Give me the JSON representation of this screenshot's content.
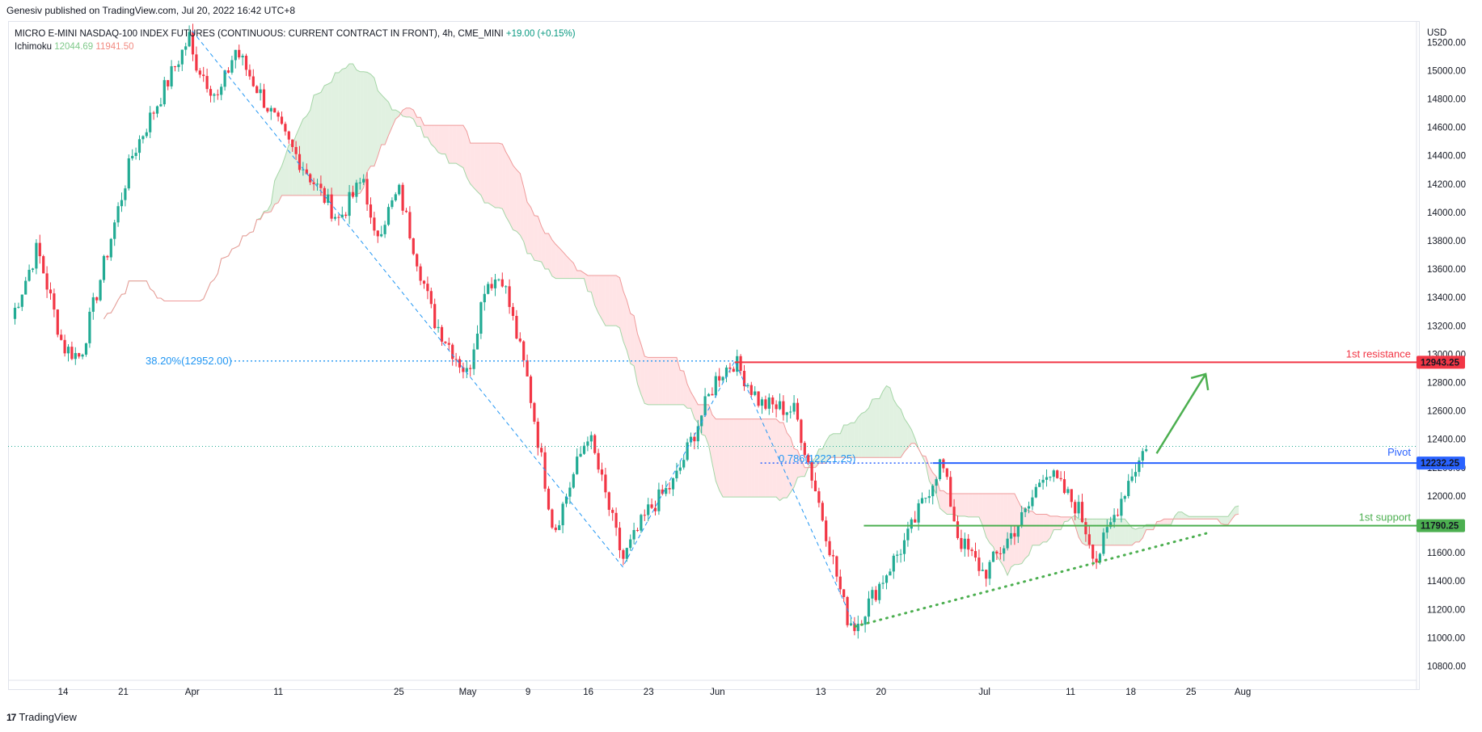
{
  "header": {
    "publisher": "Genesiv published on TradingView.com, Jul 20, 2022 16:42 UTC+8"
  },
  "legend": {
    "symbol": "MICRO E-MINI NASDAQ-100 INDEX FUTURES (CONTINUOUS: CURRENT CONTRACT IN FRONT), 4h, CME_MINI",
    "change": "+19.00 (+0.15%)",
    "indicator": "Ichimoku",
    "ichimoku_a": "12044.69",
    "ichimoku_b": "11941.50"
  },
  "footer": {
    "brand": "TradingView"
  },
  "colors": {
    "up": "#22ab94",
    "down": "#f23645",
    "resistance": "#f23645",
    "pivot": "#2962ff",
    "support": "#4caf50",
    "fib": "#2196f3",
    "cloud_green": "#c8e6c9",
    "cloud_red": "#ffcdd2"
  },
  "chart_data": {
    "type": "candlestick",
    "currency": "USD",
    "ylim": [
      10700,
      15350
    ],
    "y_ticks": [
      "15200.00",
      "15000.00",
      "14800.00",
      "14600.00",
      "14400.00",
      "14200.00",
      "14000.00",
      "13800.00",
      "13600.00",
      "13400.00",
      "13200.00",
      "13000.00",
      "12800.00",
      "12600.00",
      "12400.00",
      "12200.00",
      "12000.00",
      "11800.00",
      "11600.00",
      "11400.00",
      "11200.00",
      "11000.00",
      "10800.00"
    ],
    "x_ticks": [
      "14",
      "21",
      "Apr",
      "11",
      "25",
      "May",
      "9",
      "16",
      "23",
      "Jun",
      "13",
      "20",
      "Jul",
      "11",
      "18",
      "25",
      "Aug"
    ],
    "price_path": [
      {
        "date": "Mar 8",
        "price": 13250
      },
      {
        "date": "Mar 11",
        "price": 13750
      },
      {
        "date": "Mar 14",
        "price": 13050
      },
      {
        "date": "Mar 16",
        "price": 12980
      },
      {
        "date": "Mar 22",
        "price": 14400
      },
      {
        "date": "Mar 29",
        "price": 15280
      },
      {
        "date": "Apr 1",
        "price": 15100
      },
      {
        "date": "Apr 4",
        "price": 14800
      },
      {
        "date": "Apr 6",
        "price": 15150
      },
      {
        "date": "Apr 12",
        "price": 14500
      },
      {
        "date": "Apr 18",
        "price": 13950
      },
      {
        "date": "Apr 21",
        "price": 14250
      },
      {
        "date": "Apr 22",
        "price": 13800
      },
      {
        "date": "Apr 25",
        "price": 14150
      },
      {
        "date": "Apr 29",
        "price": 13250
      },
      {
        "date": "May 2",
        "price": 12850
      },
      {
        "date": "May 4",
        "price": 13500
      },
      {
        "date": "May 6",
        "price": 13550
      },
      {
        "date": "May 9",
        "price": 12800
      },
      {
        "date": "May 12",
        "price": 11750
      },
      {
        "date": "May 16",
        "price": 12450
      },
      {
        "date": "May 20",
        "price": 11550
      },
      {
        "date": "May 23",
        "price": 11900
      },
      {
        "date": "May 26",
        "price": 12100
      },
      {
        "date": "May 31",
        "price": 12850
      },
      {
        "date": "Jun 2",
        "price": 12900
      },
      {
        "date": "Jun 3",
        "price": 12950
      },
      {
        "date": "Jun 6",
        "price": 12650
      },
      {
        "date": "Jun 10",
        "price": 12600
      },
      {
        "date": "Jun 13",
        "price": 11900
      },
      {
        "date": "Jun 16",
        "price": 11150
      },
      {
        "date": "Jun 17",
        "price": 11080
      },
      {
        "date": "Jun 21",
        "price": 11500
      },
      {
        "date": "Jun 23",
        "price": 11700
      },
      {
        "date": "Jun 27",
        "price": 12250
      },
      {
        "date": "Jun 29",
        "price": 11700
      },
      {
        "date": "Jul 1",
        "price": 11450
      },
      {
        "date": "Jul 6",
        "price": 11900
      },
      {
        "date": "Jul 8",
        "price": 12200
      },
      {
        "date": "Jul 12",
        "price": 11900
      },
      {
        "date": "Jul 14",
        "price": 11550
      },
      {
        "date": "Jul 18",
        "price": 12150
      },
      {
        "date": "Jul 19",
        "price": 12250
      },
      {
        "date": "Jul 20",
        "price": 12400
      }
    ],
    "levels": [
      {
        "label": "1st resistance",
        "price": 12943.25,
        "tag": "12943.25"
      },
      {
        "label": "Pivot",
        "price": 12232.25,
        "tag": "12232.25"
      },
      {
        "label": "1st support",
        "price": 11790.25,
        "tag": "11790.25"
      }
    ],
    "fib_labels": [
      {
        "text": "38.20%(12952.00)",
        "price": 12952
      },
      {
        "text": "0.786(12221.25)",
        "price": 12221.25
      }
    ],
    "last_price": 12350,
    "trendline_support": [
      {
        "date": "Jun 17",
        "price": 11080
      },
      {
        "date": "Jul 27",
        "price": 11740
      }
    ]
  }
}
